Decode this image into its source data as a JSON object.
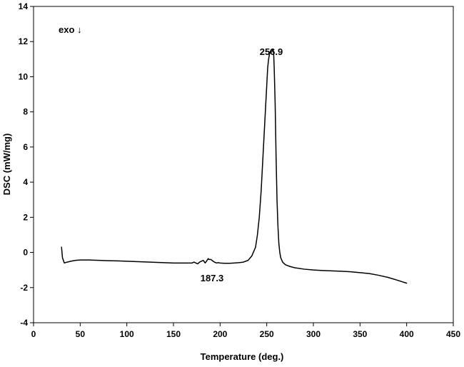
{
  "chart_data": {
    "type": "line",
    "title": "",
    "xlabel": "Temperature (deg.)",
    "ylabel": "DSC (mW/mg)",
    "xlim": [
      0,
      450
    ],
    "ylim": [
      -4,
      14
    ],
    "x_ticks": [
      0,
      50,
      100,
      150,
      200,
      250,
      300,
      350,
      400,
      450
    ],
    "y_ticks": [
      -4,
      -2,
      0,
      2,
      4,
      6,
      8,
      10,
      12,
      14
    ],
    "grid": false,
    "legend": "none",
    "colors": {
      "line": "#000000",
      "axis": "#000000"
    },
    "annotations": [
      {
        "text": "256.9",
        "x": 256.9,
        "y": 11.55
      },
      {
        "text": "187.3",
        "x": 187.3,
        "y": -0.5
      },
      {
        "text": "exo ↓"
      }
    ],
    "series": [
      {
        "x": [
          30,
          31,
          33,
          36,
          40,
          45,
          50,
          60,
          70,
          80,
          90,
          100,
          110,
          120,
          130,
          140,
          150,
          160,
          170,
          172,
          174,
          176,
          178,
          180,
          182,
          184,
          186,
          187.3,
          188,
          190,
          192,
          194,
          196,
          198,
          200,
          205,
          210,
          215,
          220,
          225,
          230,
          234,
          238,
          240,
          242,
          244,
          246,
          248,
          250,
          251,
          252,
          253,
          254,
          255,
          256,
          256.9,
          257.5,
          258,
          259,
          260,
          261,
          262,
          263,
          264,
          265,
          267,
          270,
          275,
          280,
          290,
          300,
          310,
          320,
          330,
          340,
          350,
          360,
          370,
          380,
          390,
          400
        ],
        "y": [
          0.3,
          -0.3,
          -0.6,
          -0.55,
          -0.5,
          -0.45,
          -0.43,
          -0.43,
          -0.45,
          -0.47,
          -0.48,
          -0.5,
          -0.52,
          -0.54,
          -0.56,
          -0.58,
          -0.6,
          -0.6,
          -0.6,
          -0.55,
          -0.6,
          -0.65,
          -0.55,
          -0.5,
          -0.45,
          -0.6,
          -0.45,
          -0.35,
          -0.4,
          -0.4,
          -0.48,
          -0.55,
          -0.6,
          -0.58,
          -0.6,
          -0.62,
          -0.62,
          -0.6,
          -0.58,
          -0.55,
          -0.45,
          -0.2,
          0.3,
          1.0,
          2.0,
          3.5,
          5.5,
          7.5,
          9.5,
          10.5,
          11.0,
          11.3,
          11.45,
          11.55,
          11.5,
          11.55,
          11.2,
          10.5,
          8.5,
          5.5,
          3.0,
          1.5,
          0.5,
          0,
          -0.3,
          -0.55,
          -0.7,
          -0.8,
          -0.87,
          -0.95,
          -1.0,
          -1.03,
          -1.05,
          -1.07,
          -1.1,
          -1.15,
          -1.2,
          -1.3,
          -1.42,
          -1.58,
          -1.75
        ]
      }
    ]
  }
}
